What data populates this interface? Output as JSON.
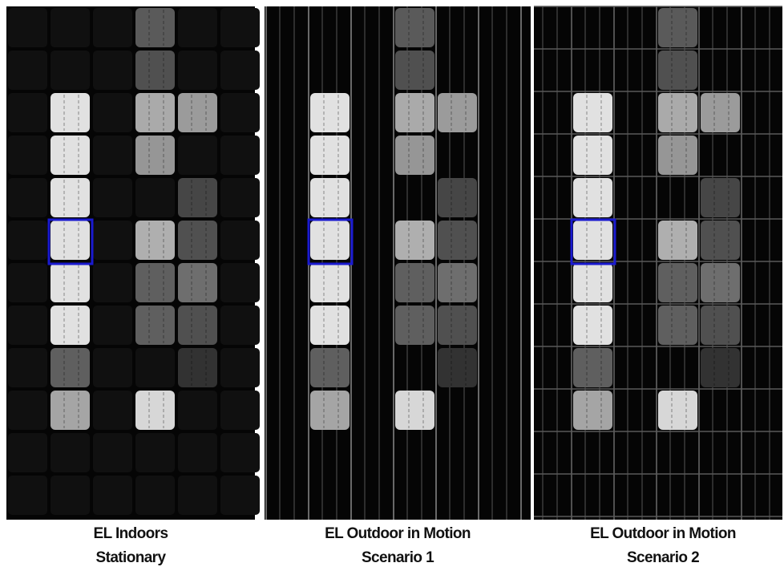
{
  "panels": [
    {
      "caption": [
        "EL Indoors",
        "Stationary"
      ]
    },
    {
      "caption": [
        "EL Outdoor in Motion",
        "Scenario 1"
      ]
    },
    {
      "caption": [
        "EL Outdoor in Motion",
        "Scenario 2"
      ]
    }
  ]
}
